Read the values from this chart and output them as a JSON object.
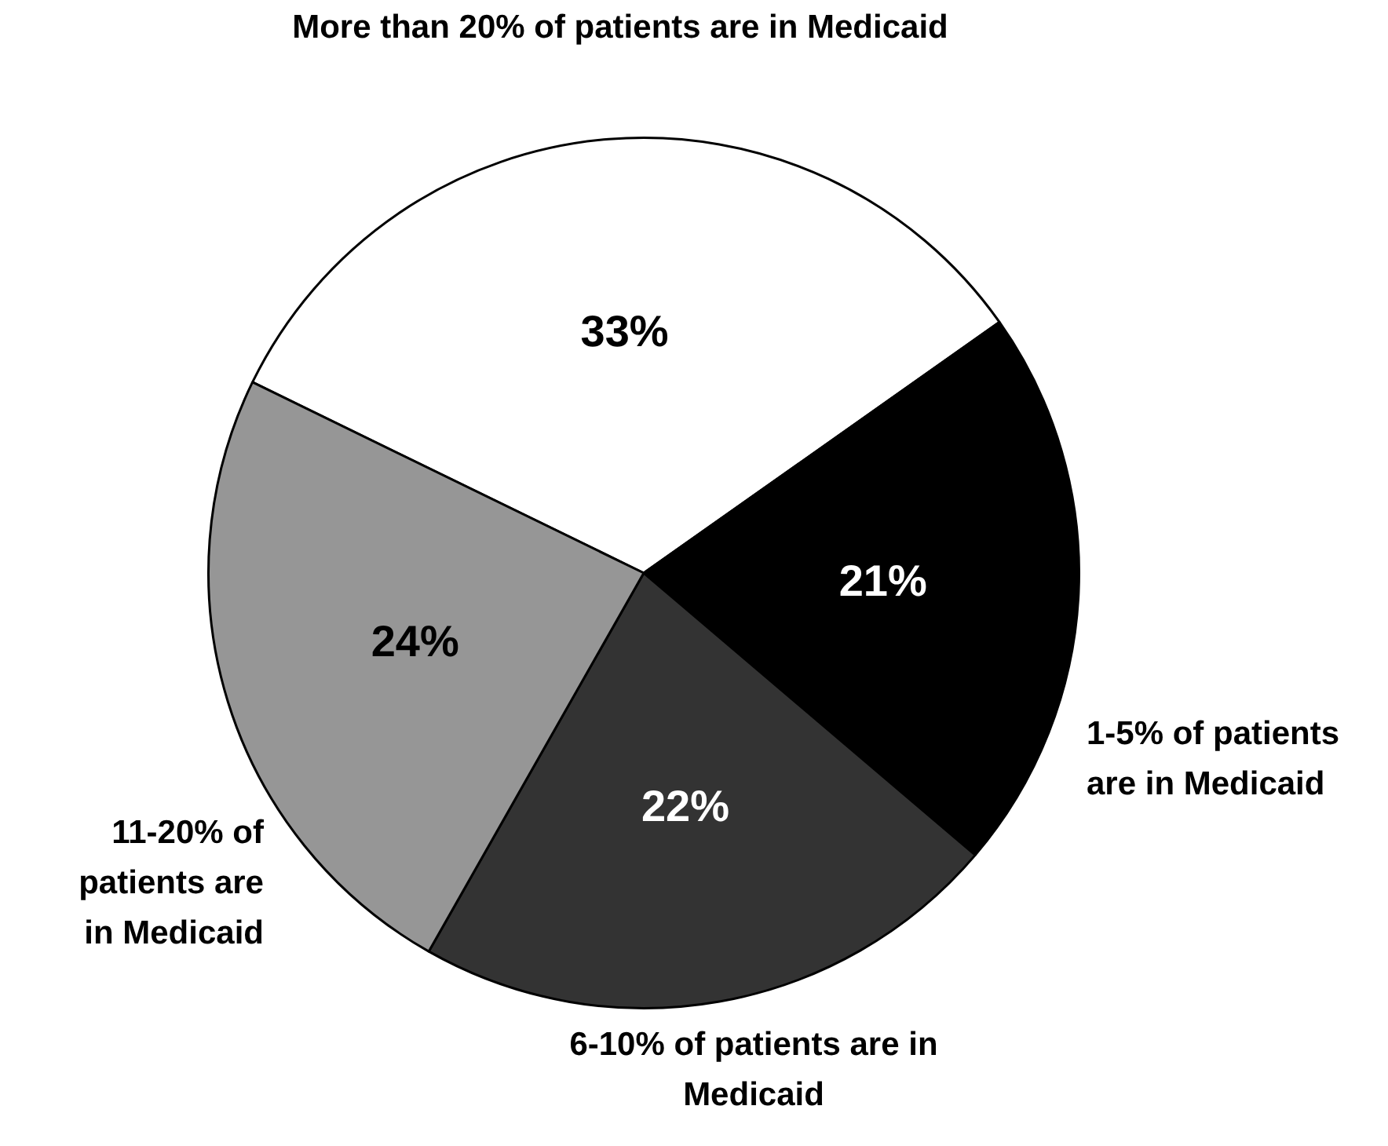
{
  "chart_data": {
    "type": "pie",
    "categories": [
      "More than 20% of patients are in Medicaid",
      "1-5% of patients are in Medicaid",
      "6-10% of patients are in Medicaid",
      "11-20% of patients are in Medicaid"
    ],
    "values": [
      33,
      21,
      22,
      24
    ],
    "value_labels": [
      "33%",
      "21%",
      "22%",
      "24%"
    ],
    "colors": [
      "#ffffff",
      "#000000",
      "#333333",
      "#969696"
    ],
    "legend": false
  }
}
